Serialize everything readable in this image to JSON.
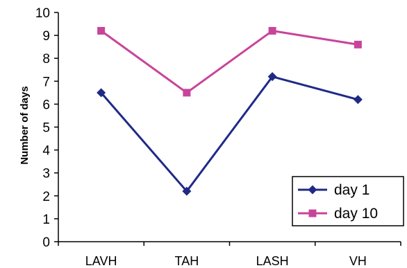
{
  "chart_data": {
    "type": "line",
    "title": "",
    "xlabel": "",
    "ylabel": "Number of days",
    "ylim": [
      0,
      10
    ],
    "yticks": [
      0,
      1,
      2,
      3,
      4,
      5,
      6,
      7,
      8,
      9,
      10
    ],
    "categories": [
      "LAVH",
      "TAH",
      "LASH",
      "VH"
    ],
    "grid": false,
    "legend": "bottom-right",
    "series": [
      {
        "name": "day 1",
        "values": [
          6.5,
          2.2,
          7.2,
          6.2
        ],
        "color": "#1f2a86",
        "marker": "diamond"
      },
      {
        "name": "day 10",
        "values": [
          9.2,
          6.5,
          9.2,
          8.6
        ],
        "color": "#c8449a",
        "marker": "square"
      }
    ]
  }
}
